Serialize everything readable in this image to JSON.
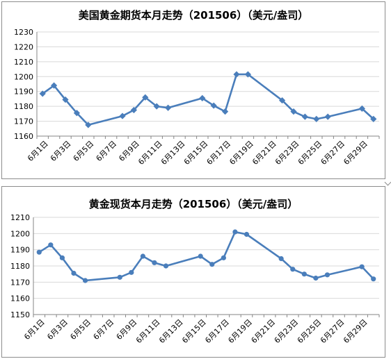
{
  "chart_data": [
    {
      "type": "line",
      "title": "美国黄金期货本月走势（201506）（美元/盎司）",
      "xlabel": "",
      "ylabel": "",
      "ylim": [
        1160,
        1230
      ],
      "yticks": [
        1160,
        1170,
        1180,
        1190,
        1200,
        1210,
        1220,
        1230
      ],
      "categories": [
        "6月1日",
        "6月2日",
        "6月3日",
        "6月4日",
        "6月5日",
        "6月6日",
        "6月7日",
        "6月8日",
        "6月9日",
        "6月10日",
        "6月11日",
        "6月12日",
        "6月13日",
        "6月14日",
        "6月15日",
        "6月16日",
        "6月17日",
        "6月18日",
        "6月19日",
        "6月20日",
        "6月21日",
        "6月22日",
        "6月23日",
        "6月24日",
        "6月25日",
        "6月26日",
        "6月27日",
        "6月28日",
        "6月29日",
        "6月30日"
      ],
      "x_tick_labels": [
        "6月1日",
        "6月3日",
        "6月5日",
        "6月7日",
        "6月9日",
        "6月11日",
        "6月13日",
        "6月15日",
        "6月17日",
        "6月19日",
        "6月21日",
        "6月23日",
        "6月25日",
        "6月27日",
        "6月29日"
      ],
      "marker": "diamond",
      "grid": true,
      "legend": "none",
      "color": "#4a7ebb",
      "points": [
        [
          "6月1日",
          1188.5
        ],
        [
          "6月2日",
          1194
        ],
        [
          "6月3日",
          1184.5
        ],
        [
          "6月4日",
          1175.5
        ],
        [
          "6月5日",
          1167.5
        ],
        [
          "6月8日",
          1173.5
        ],
        [
          "6月9日",
          1177.5
        ],
        [
          "6月10日",
          1186
        ],
        [
          "6月11日",
          1180
        ],
        [
          "6月12日",
          1179
        ],
        [
          "6月15日",
          1185.5
        ],
        [
          "6月16日",
          1180.5
        ],
        [
          "6月17日",
          1176.5
        ],
        [
          "6月18日",
          1201.5
        ],
        [
          "6月19日",
          1201.5
        ],
        [
          "6月22日",
          1184
        ],
        [
          "6月23日",
          1176.5
        ],
        [
          "6月24日",
          1173
        ],
        [
          "6月25日",
          1171.5
        ],
        [
          "6月26日",
          1173
        ],
        [
          "6月29日",
          1178.5
        ],
        [
          "6月30日",
          1171.5
        ]
      ]
    },
    {
      "type": "line",
      "title": "黄金现货本月走势（201506）（美元/盎司）",
      "xlabel": "",
      "ylabel": "",
      "ylim": [
        1150,
        1210
      ],
      "yticks": [
        1150,
        1160,
        1170,
        1180,
        1190,
        1200,
        1210
      ],
      "categories": [
        "6月1日",
        "6月2日",
        "6月3日",
        "6月4日",
        "6月5日",
        "6月6日",
        "6月7日",
        "6月8日",
        "6月9日",
        "6月10日",
        "6月11日",
        "6月12日",
        "6月13日",
        "6月14日",
        "6月15日",
        "6月16日",
        "6月17日",
        "6月18日",
        "6月19日",
        "6月20日",
        "6月21日",
        "6月22日",
        "6月23日",
        "6月24日",
        "6月25日",
        "6月26日",
        "6月27日",
        "6月28日",
        "6月29日",
        "6月30日"
      ],
      "x_tick_labels": [
        "6月1日",
        "6月3日",
        "6月5日",
        "6月7日",
        "6月9日",
        "6月11日",
        "6月13日",
        "6月15日",
        "6月17日",
        "6月19日",
        "6月21日",
        "6月23日",
        "6月25日",
        "6月27日",
        "6月29日"
      ],
      "marker": "circle",
      "grid": true,
      "legend": "none",
      "color": "#4a7ebb",
      "points": [
        [
          "6月1日",
          1188.5
        ],
        [
          "6月2日",
          1193
        ],
        [
          "6月3日",
          1185
        ],
        [
          "6月4日",
          1175.5
        ],
        [
          "6月5日",
          1171
        ],
        [
          "6月8日",
          1173
        ],
        [
          "6月9日",
          1176
        ],
        [
          "6月10日",
          1186
        ],
        [
          "6月11日",
          1182
        ],
        [
          "6月12日",
          1180
        ],
        [
          "6月15日",
          1186
        ],
        [
          "6月16日",
          1181
        ],
        [
          "6月17日",
          1185
        ],
        [
          "6月18日",
          1201
        ],
        [
          "6月19日",
          1199.5
        ],
        [
          "6月22日",
          1184.5
        ],
        [
          "6月23日",
          1178
        ],
        [
          "6月24日",
          1175
        ],
        [
          "6月25日",
          1172.5
        ],
        [
          "6月26日",
          1174.5
        ],
        [
          "6月29日",
          1179.5
        ],
        [
          "6月30日",
          1172
        ]
      ]
    }
  ]
}
